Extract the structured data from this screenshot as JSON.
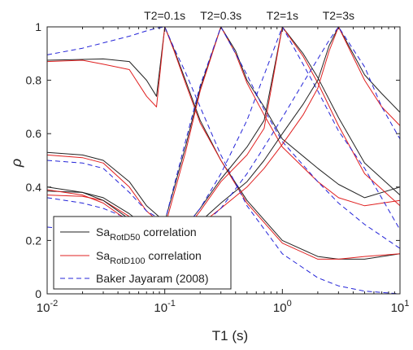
{
  "chart_data": {
    "type": "line",
    "title": "",
    "xlabel": "T1 (s)",
    "ylabel": "ρ",
    "x_scale": "log",
    "xlim": [
      0.01,
      10
    ],
    "ylim": [
      0,
      1
    ],
    "x_ticks": [
      {
        "value": 0.01,
        "base": "10",
        "exp": "-2"
      },
      {
        "value": 0.1,
        "base": "10",
        "exp": "-1"
      },
      {
        "value": 1,
        "base": "10",
        "exp": "0"
      },
      {
        "value": 10,
        "base": "10",
        "exp": "1"
      }
    ],
    "y_ticks": [
      0,
      0.2,
      0.4,
      0.6,
      0.8,
      1
    ],
    "top_labels": [
      {
        "value": 0.1,
        "text": "T2=0.1s"
      },
      {
        "value": 0.3,
        "text": "T2=0.3s"
      },
      {
        "value": 1,
        "text": "T2=1s"
      },
      {
        "value": 3,
        "text": "T2=3s"
      }
    ],
    "legend": {
      "position": "bottom-left",
      "entries": [
        {
          "base": "Sa",
          "sub": "RotD50",
          "rest": " correlation",
          "color": "#222222",
          "dash": "solid"
        },
        {
          "base": "Sa",
          "sub": "RotD100",
          "rest": " correlation",
          "color": "#e02020",
          "dash": "solid"
        },
        {
          "base": "Baker Jayaram (2008)",
          "sub": "",
          "rest": "",
          "color": "#2424d8",
          "dash": "dashed"
        }
      ]
    },
    "series": [
      {
        "group": "RotD50",
        "T2": 0.1,
        "color": "#222222",
        "dash": "solid",
        "x": [
          0.01,
          0.02,
          0.03,
          0.05,
          0.07,
          0.085,
          0.1,
          0.12,
          0.15,
          0.2,
          0.3,
          0.5,
          1,
          2,
          3,
          5,
          10
        ],
        "y": [
          0.875,
          0.878,
          0.88,
          0.87,
          0.8,
          0.74,
          1.0,
          0.915,
          0.8,
          0.65,
          0.5,
          0.35,
          0.2,
          0.14,
          0.13,
          0.13,
          0.15
        ]
      },
      {
        "group": "RotD100",
        "T2": 0.1,
        "color": "#e02020",
        "dash": "solid",
        "x": [
          0.01,
          0.02,
          0.03,
          0.05,
          0.07,
          0.085,
          0.1,
          0.12,
          0.15,
          0.2,
          0.3,
          0.5,
          1,
          2,
          3,
          5,
          10
        ],
        "y": [
          0.87,
          0.875,
          0.86,
          0.84,
          0.74,
          0.7,
          1.0,
          0.91,
          0.79,
          0.64,
          0.5,
          0.34,
          0.19,
          0.13,
          0.13,
          0.14,
          0.15
        ]
      },
      {
        "group": "Baker",
        "T2": 0.1,
        "color": "#2424d8",
        "dash": "dashed",
        "x": [
          0.01,
          0.02,
          0.03,
          0.05,
          0.07,
          0.085,
          0.1,
          0.12,
          0.15,
          0.2,
          0.3,
          0.5,
          1,
          2,
          3,
          5,
          10
        ],
        "y": [
          0.895,
          0.92,
          0.94,
          0.965,
          0.985,
          0.995,
          1.0,
          0.92,
          0.83,
          0.7,
          0.52,
          0.33,
          0.15,
          0.06,
          0.03,
          0.01,
          0.0
        ]
      },
      {
        "group": "RotD50",
        "T2": 0.3,
        "color": "#222222",
        "dash": "solid",
        "x": [
          0.01,
          0.02,
          0.03,
          0.05,
          0.07,
          0.1,
          0.15,
          0.2,
          0.3,
          0.4,
          0.5,
          0.7,
          1,
          2,
          3,
          5,
          10
        ],
        "y": [
          0.53,
          0.52,
          0.5,
          0.42,
          0.33,
          0.27,
          0.55,
          0.77,
          1.0,
          0.91,
          0.8,
          0.7,
          0.58,
          0.47,
          0.41,
          0.36,
          0.4
        ]
      },
      {
        "group": "RotD100",
        "T2": 0.3,
        "color": "#e02020",
        "dash": "solid",
        "x": [
          0.01,
          0.02,
          0.03,
          0.05,
          0.07,
          0.1,
          0.15,
          0.2,
          0.3,
          0.4,
          0.5,
          0.7,
          1,
          2,
          3,
          5,
          10
        ],
        "y": [
          0.52,
          0.51,
          0.49,
          0.4,
          0.31,
          0.25,
          0.53,
          0.76,
          1.0,
          0.9,
          0.79,
          0.67,
          0.55,
          0.42,
          0.36,
          0.33,
          0.35
        ]
      },
      {
        "group": "Baker",
        "T2": 0.3,
        "color": "#2424d8",
        "dash": "dashed",
        "x": [
          0.01,
          0.02,
          0.03,
          0.05,
          0.07,
          0.1,
          0.15,
          0.2,
          0.3,
          0.4,
          0.5,
          0.7,
          1,
          2,
          3,
          5,
          10
        ],
        "y": [
          0.5,
          0.49,
          0.47,
          0.38,
          0.31,
          0.27,
          0.57,
          0.78,
          1.0,
          0.9,
          0.82,
          0.69,
          0.57,
          0.42,
          0.34,
          0.26,
          0.17
        ]
      },
      {
        "group": "RotD50",
        "T2": 1,
        "color": "#222222",
        "dash": "solid",
        "x": [
          0.01,
          0.02,
          0.03,
          0.05,
          0.07,
          0.1,
          0.15,
          0.2,
          0.3,
          0.5,
          0.7,
          1,
          1.5,
          2,
          3,
          5,
          10
        ],
        "y": [
          0.385,
          0.38,
          0.36,
          0.3,
          0.25,
          0.2,
          0.25,
          0.32,
          0.43,
          0.55,
          0.65,
          1.0,
          0.9,
          0.81,
          0.66,
          0.49,
          0.37
        ]
      },
      {
        "group": "RotD100",
        "T2": 1,
        "color": "#e02020",
        "dash": "solid",
        "x": [
          0.01,
          0.02,
          0.03,
          0.05,
          0.07,
          0.1,
          0.15,
          0.2,
          0.3,
          0.5,
          0.7,
          1,
          1.5,
          2,
          3,
          5,
          10
        ],
        "y": [
          0.37,
          0.365,
          0.35,
          0.29,
          0.24,
          0.19,
          0.24,
          0.31,
          0.42,
          0.52,
          0.62,
          1.0,
          0.89,
          0.79,
          0.63,
          0.45,
          0.33
        ]
      },
      {
        "group": "Baker",
        "T2": 1,
        "color": "#2424d8",
        "dash": "dashed",
        "x": [
          0.01,
          0.02,
          0.03,
          0.05,
          0.07,
          0.1,
          0.15,
          0.2,
          0.3,
          0.5,
          0.7,
          1,
          1.5,
          2,
          3,
          5,
          10
        ],
        "y": [
          0.36,
          0.34,
          0.32,
          0.28,
          0.24,
          0.2,
          0.25,
          0.32,
          0.45,
          0.65,
          0.82,
          1.0,
          0.86,
          0.76,
          0.61,
          0.47,
          0.24
        ]
      },
      {
        "group": "RotD50",
        "T2": 3,
        "color": "#222222",
        "dash": "solid",
        "x": [
          0.01,
          0.02,
          0.03,
          0.05,
          0.07,
          0.1,
          0.15,
          0.2,
          0.3,
          0.5,
          0.7,
          1,
          1.5,
          2,
          2.5,
          3,
          5,
          7,
          10
        ],
        "y": [
          0.4,
          0.38,
          0.35,
          0.28,
          0.23,
          0.18,
          0.22,
          0.27,
          0.34,
          0.42,
          0.5,
          0.6,
          0.71,
          0.8,
          0.93,
          1.0,
          0.82,
          0.75,
          0.68
        ]
      },
      {
        "group": "RotD100",
        "T2": 3,
        "color": "#e02020",
        "dash": "solid",
        "x": [
          0.01,
          0.02,
          0.03,
          0.05,
          0.07,
          0.1,
          0.15,
          0.2,
          0.3,
          0.5,
          0.7,
          1,
          1.5,
          2,
          2.5,
          3,
          5,
          7,
          10
        ],
        "y": [
          0.39,
          0.37,
          0.34,
          0.27,
          0.22,
          0.17,
          0.21,
          0.26,
          0.32,
          0.4,
          0.47,
          0.56,
          0.67,
          0.77,
          0.91,
          1.0,
          0.8,
          0.7,
          0.63
        ]
      },
      {
        "group": "Baker",
        "T2": 3,
        "color": "#2424d8",
        "dash": "dashed",
        "x": [
          0.01,
          0.02,
          0.03,
          0.05,
          0.07,
          0.1,
          0.15,
          0.2,
          0.3,
          0.5,
          0.7,
          1,
          1.5,
          2,
          2.5,
          3,
          5,
          7,
          10
        ],
        "y": [
          0.25,
          0.24,
          0.23,
          0.21,
          0.19,
          0.18,
          0.21,
          0.25,
          0.32,
          0.45,
          0.55,
          0.66,
          0.79,
          0.88,
          0.95,
          1.0,
          0.85,
          0.7,
          0.58
        ]
      }
    ]
  }
}
